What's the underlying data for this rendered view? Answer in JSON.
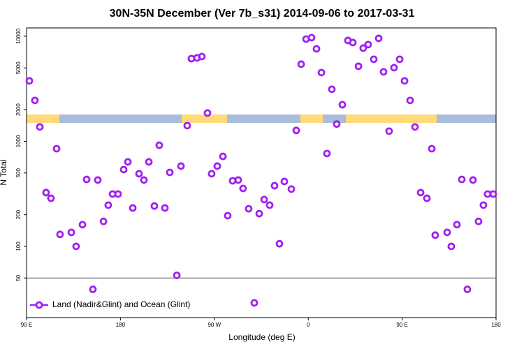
{
  "chart_data": {
    "type": "scatter",
    "title": "30N-35N December (Ver 7b_s31)   2014-09-06 to 2017-03-31",
    "x_label": "Longitude (deg E)",
    "y_label": "N Total",
    "xlim": [
      90,
      540
    ],
    "xticks": [
      {
        "value": 90,
        "label": "90 E"
      },
      {
        "value": 180,
        "label": "180"
      },
      {
        "value": 270,
        "label": "90 W"
      },
      {
        "value": 360,
        "label": "0"
      },
      {
        "value": 450,
        "label": "90 E"
      },
      {
        "value": 540,
        "label": "180"
      }
    ],
    "ylim": [
      21,
      12000
    ],
    "y_log": true,
    "yticks": [
      50,
      100,
      200,
      500,
      1000,
      2000,
      5000,
      10000
    ],
    "reference_line": 50,
    "legend": "bottom-left",
    "series": [
      {
        "name": "Land (Nadir&Glint) and Ocean (Glint)",
        "color": "#a020f0",
        "x": [
          92.7,
          98,
          102.7,
          108.7,
          113.4,
          118.8,
          122.1,
          132.9,
          137.5,
          143.6,
          147.6,
          153.6,
          158.3,
          163.7,
          168.3,
          172.4,
          177.7,
          183.1,
          187.1,
          191.8,
          197.8,
          202.5,
          207.2,
          212.5,
          217.2,
          222.6,
          227.3,
          234,
          238,
          244,
          248,
          253.4,
          258,
          263.4,
          267.4,
          272.8,
          278.2,
          282.8,
          287.5,
          292.9,
          297.5,
          302.9,
          308.3,
          313,
          317.7,
          323,
          327.7,
          332.4,
          337.1,
          343.8,
          348.5,
          353.2,
          357.9,
          363.2,
          367.9,
          372.6,
          377.9,
          382.6,
          387.3,
          392.7,
          398,
          402.7,
          408.1,
          412.7,
          417.4,
          422.8,
          427.5,
          432.2,
          437.5,
          442.2,
          447.6,
          452.3,
          457.6,
          462.3,
          467.7,
          473.7,
          478.4,
          481.7,
          493.1,
          497.1,
          502.5,
          507.2,
          512.5,
          517.9,
          523.2,
          527.9,
          531.9,
          537.3
        ],
        "values": [
          3760,
          2450,
          1370,
          325,
          287,
          851,
          130,
          136,
          100,
          161,
          434,
          39,
          428,
          173,
          247,
          315,
          315,
          538,
          637,
          232,
          491,
          428,
          637,
          242,
          918,
          232,
          506,
          53,
          581,
          1410,
          6120,
          6220,
          6410,
          1860,
          491,
          581,
          719,
          196,
          421,
          428,
          356,
          228,
          29,
          205,
          279,
          247,
          378,
          106,
          415,
          351,
          1270,
          5420,
          9400,
          9700,
          7590,
          4510,
          766,
          3130,
          1460,
          2230,
          9120,
          8710,
          5180,
          7710,
          8330,
          6040,
          9550,
          4580,
          1250,
          5020,
          6040,
          3760,
          2450,
          1370,
          325,
          287,
          851,
          128,
          136,
          100,
          161,
          434,
          39,
          428,
          173,
          247,
          315,
          315
        ]
      }
    ]
  }
}
